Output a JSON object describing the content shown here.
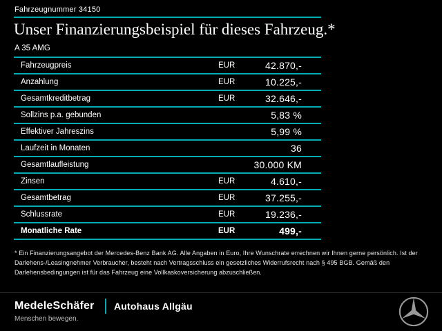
{
  "colors": {
    "accent": "#00adb5",
    "background": "#000000",
    "text": "#ffffff"
  },
  "header": {
    "vehicle_number": "Fahrzeugnummer 34150",
    "title": "Unser Finanzierungsbeispiel für dieses Fahrzeug.*",
    "model": "A 35 AMG"
  },
  "table": {
    "rows": [
      {
        "label": "Fahrzeugpreis",
        "currency": "EUR",
        "value": "42.870,-",
        "bold": false
      },
      {
        "label": "Anzahlung",
        "currency": "EUR",
        "value": "10.225,-",
        "bold": false
      },
      {
        "label": "Gesamtkreditbetrag",
        "currency": "EUR",
        "value": "32.646,-",
        "bold": false
      },
      {
        "label": "Sollzins p.a. gebunden",
        "currency": "",
        "value": "5,83 %",
        "bold": false
      },
      {
        "label": "Effektiver Jahreszins",
        "currency": "",
        "value": "5,99 %",
        "bold": false
      },
      {
        "label": "Laufzeit in Monaten",
        "currency": "",
        "value": "36",
        "bold": false
      },
      {
        "label": "Gesamtlaufleistung",
        "currency": "",
        "value": "30.000 KM",
        "bold": false
      },
      {
        "label": "Zinsen",
        "currency": "EUR",
        "value": "4.610,-",
        "bold": false
      },
      {
        "label": "Gesamtbetrag",
        "currency": "EUR",
        "value": "37.255,-",
        "bold": false
      },
      {
        "label": "Schlussrate",
        "currency": "EUR",
        "value": "19.236,-",
        "bold": false
      },
      {
        "label": "Monatliche Rate",
        "currency": "EUR",
        "value": "499,-",
        "bold": true
      }
    ]
  },
  "footnote": "* Ein Finanzierungsangebot der Mercedes-Benz Bank AG. Alle Angaben in Euro, Ihre Wunschrate errechnen wir Ihnen gerne persönlich. Ist der Darlehens-/Leasingnehmer Verbraucher, besteht nach Vertragsschluss ein gesetzliches Widerrufsrecht nach § 495 BGB. Gemäß den Darlehensbedingungen ist für das Fahrzeug eine Vollkaskoversicherung abzuschließen.",
  "footer": {
    "dealer_primary": "MedeleSchäfer",
    "dealer_secondary": "Autohaus Allgäu",
    "tagline": "Menschen bewegen.",
    "brand_logo": "mercedes-star-icon"
  }
}
